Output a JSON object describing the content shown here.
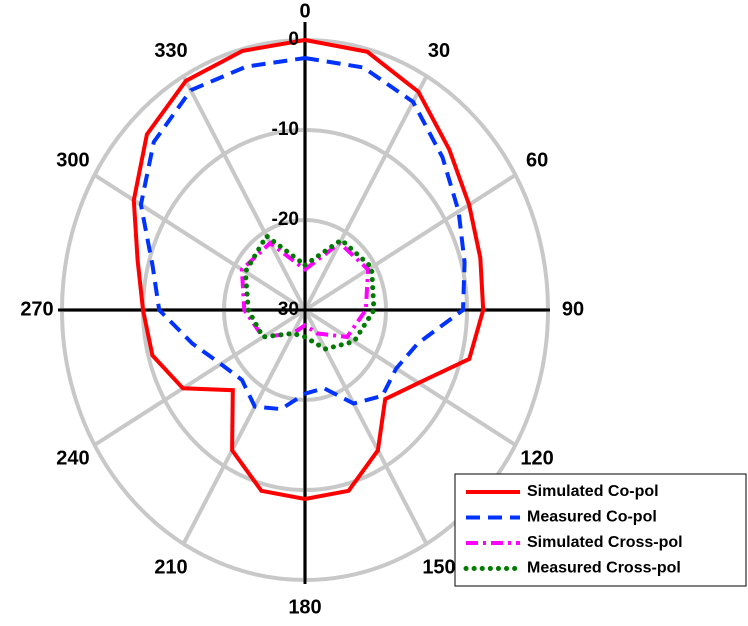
{
  "chart_data": {
    "type": "polar",
    "rlim": [
      -30,
      0
    ],
    "rticks": [
      -30,
      -20,
      -10,
      0
    ],
    "thetaticks": [
      0,
      30,
      60,
      90,
      120,
      150,
      180,
      210,
      240,
      270,
      300,
      330
    ],
    "grid": true,
    "legend": "lower right",
    "series": [
      {
        "name": "Simulated Co-pol",
        "color": "#ff0000",
        "style": "solid",
        "theta": [
          0,
          15,
          30,
          45,
          60,
          75,
          90,
          105,
          120,
          135,
          150,
          165,
          180,
          195,
          210,
          225,
          240,
          255,
          270,
          285,
          300,
          315,
          330,
          345
        ],
        "values": [
          0,
          -0.3,
          -2,
          -4.8,
          -6.6,
          -7.6,
          -8,
          -9,
          -13.8,
          -16,
          -12,
          -9.2,
          -9,
          -9.2,
          -12,
          -17.4,
          -12.6,
          -10.5,
          -10,
          -8.6,
          -5.6,
          -2.4,
          -0.6,
          -0.2
        ]
      },
      {
        "name": "Measured Co-pol",
        "color": "#0033ff",
        "style": "dash",
        "theta": [
          0,
          15,
          30,
          45,
          60,
          75,
          90,
          105,
          120,
          135,
          150,
          165,
          180,
          195,
          210,
          225,
          240,
          255,
          270,
          285,
          300,
          315,
          330,
          345
        ],
        "values": [
          -2,
          -2.1,
          -3.3,
          -6,
          -8.1,
          -9.6,
          -10.5,
          -15.6,
          -17,
          -16.5,
          -18,
          -21,
          -20.7,
          -18.6,
          -17.6,
          -19,
          -18,
          -15.6,
          -12,
          -10.5,
          -6.6,
          -3.6,
          -1.8,
          -2
        ]
      },
      {
        "name": "Simulated Cross-pol",
        "color": "#ff00ff",
        "style": "dashdot",
        "theta": [
          0,
          30,
          60,
          90,
          120,
          150,
          180,
          210,
          240,
          270,
          300,
          330
        ],
        "values": [
          -25.5,
          -21.4,
          -21,
          -22.5,
          -24,
          -27,
          -28.3,
          -27,
          -24,
          -22.5,
          -21,
          -21.4
        ]
      },
      {
        "name": "Measured Cross-pol",
        "color": "#007a00",
        "style": "dot",
        "theta": [
          0,
          30,
          60,
          90,
          120,
          150,
          180,
          210,
          240,
          270,
          300,
          330
        ],
        "values": [
          -25,
          -21,
          -20.5,
          -21.5,
          -23,
          -25,
          -27,
          -27,
          -24,
          -23,
          -21.5,
          -20.5
        ]
      }
    ]
  }
}
